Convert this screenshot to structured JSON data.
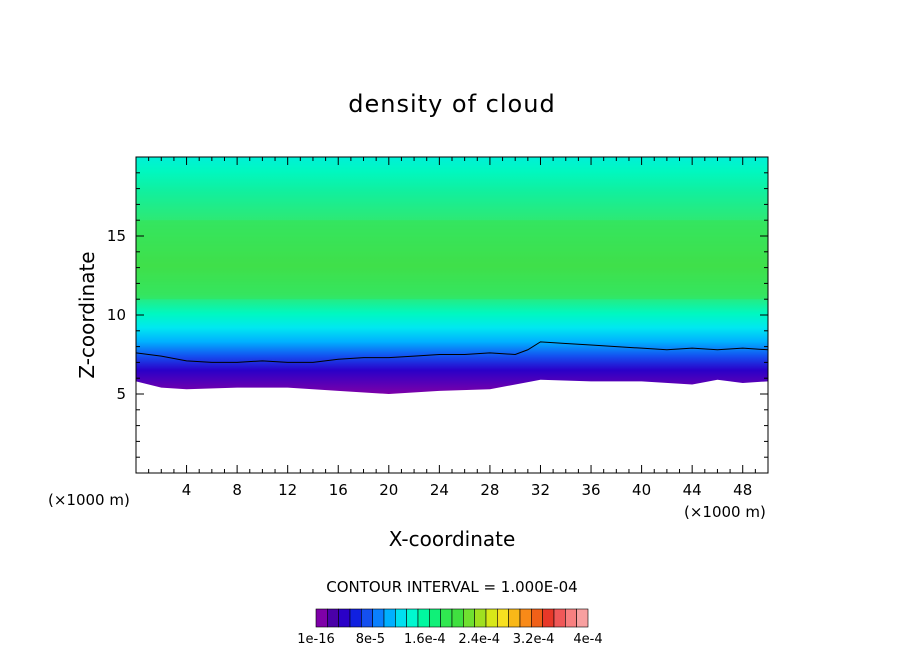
{
  "chart_data": {
    "type": "heatmap",
    "title": "density of cloud",
    "xlabel": "X-coordinate",
    "ylabel": "Z-coordinate",
    "x_unit_left": "(×1000 m)",
    "x_unit_right": "(×1000 m)",
    "xlim": [
      0,
      50
    ],
    "ylim": [
      0,
      20
    ],
    "xticks": [
      4,
      8,
      12,
      16,
      20,
      24,
      28,
      32,
      36,
      40,
      44,
      48
    ],
    "xtick_labels": [
      "4",
      "8",
      "12",
      "16",
      "20",
      "24",
      "28",
      "32",
      "36",
      "40",
      "44",
      "48"
    ],
    "yticks": [
      5,
      10,
      15
    ],
    "ytick_labels": [
      "5",
      "10",
      "15"
    ],
    "contour_interval_text": "CONTOUR INTERVAL = 1.000E-04",
    "colorbar": {
      "colors": [
        "#7e00a8",
        "#4a00a8",
        "#2a00c8",
        "#1020e0",
        "#1450f0",
        "#0a80ff",
        "#00b0ff",
        "#00e0f0",
        "#00f8d0",
        "#00f8a0",
        "#10f078",
        "#30e850",
        "#40e040",
        "#70e030",
        "#a0e020",
        "#d8e818",
        "#f8e020",
        "#f8b818",
        "#f88a18",
        "#f06018",
        "#e83828",
        "#f05858",
        "#f88080",
        "#f8a0a0"
      ],
      "tick_labels": [
        "1e-16",
        "8e-5",
        "1.6e-4",
        "2.4e-4",
        "3.2e-4",
        "4e-4"
      ]
    },
    "cloud_base_km": [
      [
        0,
        7.6
      ],
      [
        2,
        7.4
      ],
      [
        4,
        7.1
      ],
      [
        6,
        7.0
      ],
      [
        8,
        7.0
      ],
      [
        10,
        7.1
      ],
      [
        12,
        7.0
      ],
      [
        14,
        7.0
      ],
      [
        16,
        7.2
      ],
      [
        18,
        7.3
      ],
      [
        20,
        7.3
      ],
      [
        22,
        7.4
      ],
      [
        24,
        7.5
      ],
      [
        26,
        7.5
      ],
      [
        28,
        7.6
      ],
      [
        30,
        7.5
      ],
      [
        31,
        7.8
      ],
      [
        32,
        8.3
      ],
      [
        34,
        8.2
      ],
      [
        36,
        8.1
      ],
      [
        38,
        8.0
      ],
      [
        40,
        7.9
      ],
      [
        42,
        7.8
      ],
      [
        44,
        7.9
      ],
      [
        46,
        7.8
      ],
      [
        48,
        7.9
      ],
      [
        50,
        7.8
      ]
    ],
    "cloud_bottom_km": [
      [
        0,
        5.8
      ],
      [
        2,
        5.4
      ],
      [
        4,
        5.3
      ],
      [
        8,
        5.4
      ],
      [
        12,
        5.4
      ],
      [
        16,
        5.2
      ],
      [
        20,
        5.0
      ],
      [
        24,
        5.2
      ],
      [
        28,
        5.3
      ],
      [
        32,
        5.9
      ],
      [
        36,
        5.8
      ],
      [
        40,
        5.8
      ],
      [
        44,
        5.6
      ],
      [
        46,
        5.9
      ],
      [
        48,
        5.7
      ],
      [
        50,
        5.8
      ]
    ],
    "cloud_top_km": 20,
    "peak_region": {
      "x": [
        0,
        50
      ],
      "z": [
        11,
        16
      ]
    }
  }
}
